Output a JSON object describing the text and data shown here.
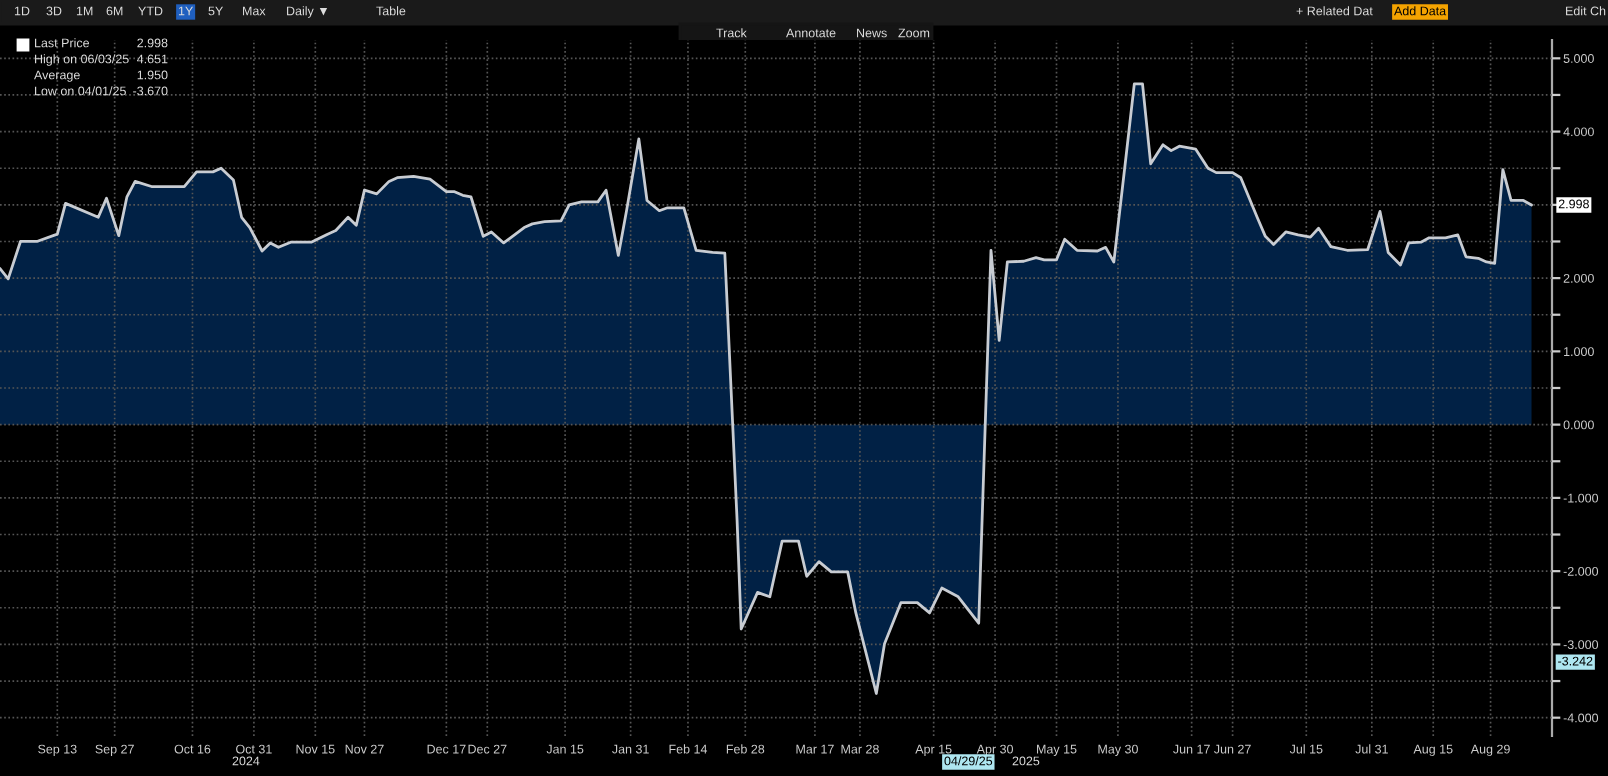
{
  "chart_data": {
    "type": "area",
    "x": [
      "2024-08-30",
      "2024-09-01",
      "2024-09-04",
      "2024-09-08",
      "2024-09-13",
      "2024-09-15",
      "2024-09-23",
      "2024-09-25",
      "2024-09-28",
      "2024-09-30",
      "2024-10-02",
      "2024-10-06",
      "2024-10-14",
      "2024-10-17",
      "2024-10-21",
      "2024-10-23",
      "2024-10-26",
      "2024-10-28",
      "2024-10-30",
      "2024-11-02",
      "2024-11-04",
      "2024-11-06",
      "2024-11-09",
      "2024-11-14",
      "2024-11-18",
      "2024-11-20",
      "2024-11-23",
      "2024-11-25",
      "2024-11-27",
      "2024-11-30",
      "2024-12-03",
      "2024-12-05",
      "2024-12-09",
      "2024-12-13",
      "2024-12-17",
      "2024-12-19",
      "2024-12-21",
      "2024-12-23",
      "2024-12-26",
      "2024-12-28",
      "2024-12-31",
      "2025-01-05",
      "2025-01-07",
      "2025-01-10",
      "2025-01-14",
      "2025-01-16",
      "2025-01-19",
      "2025-01-23",
      "2025-01-25",
      "2025-01-28",
      "2025-01-30",
      "2025-02-02",
      "2025-02-04",
      "2025-02-07",
      "2025-02-09",
      "2025-02-13",
      "2025-02-16",
      "2025-02-20",
      "2025-02-23",
      "2025-02-26",
      "2025-02-27",
      "2025-03-03",
      "2025-03-06",
      "2025-03-09",
      "2025-03-13",
      "2025-03-15",
      "2025-03-18",
      "2025-03-21",
      "2025-03-25",
      "2025-03-27",
      "2025-04-01",
      "2025-04-03",
      "2025-04-05",
      "2025-04-07",
      "2025-04-11",
      "2025-04-14",
      "2025-04-17",
      "2025-04-21",
      "2025-04-26",
      "2025-04-29",
      "2025-05-01",
      "2025-05-03",
      "2025-05-07",
      "2025-05-10",
      "2025-05-12",
      "2025-05-15",
      "2025-05-17",
      "2025-05-20",
      "2025-05-25",
      "2025-05-27",
      "2025-05-29",
      "2025-06-01",
      "2025-06-03",
      "2025-06-05",
      "2025-06-07",
      "2025-06-10",
      "2025-06-12",
      "2025-06-14",
      "2025-06-18",
      "2025-06-21",
      "2025-06-23",
      "2025-06-27",
      "2025-06-29",
      "2025-07-03",
      "2025-07-05",
      "2025-07-07",
      "2025-07-10",
      "2025-07-13",
      "2025-07-16",
      "2025-07-18",
      "2025-07-21",
      "2025-07-25",
      "2025-07-30",
      "2025-08-02",
      "2025-08-04",
      "2025-08-07",
      "2025-08-09",
      "2025-08-12",
      "2025-08-14",
      "2025-08-18",
      "2025-08-21",
      "2025-08-23",
      "2025-08-26",
      "2025-08-28",
      "2025-08-30",
      "2025-09-01",
      "2025-09-03",
      "2025-09-06",
      "2025-09-08"
    ],
    "series": [
      {
        "color": "#012145",
        "values": [
          2.13,
          1.99,
          2.5,
          2.5,
          2.6,
          3.02,
          2.83,
          3.09,
          2.58,
          3.11,
          3.32,
          3.25,
          3.25,
          3.45,
          3.45,
          3.5,
          3.34,
          2.83,
          2.69,
          2.37,
          2.48,
          2.42,
          2.49,
          2.49,
          2.6,
          2.65,
          2.83,
          2.72,
          3.2,
          3.15,
          3.32,
          3.37,
          3.39,
          3.35,
          3.18,
          3.18,
          3.13,
          3.11,
          2.57,
          2.63,
          2.48,
          2.69,
          2.74,
          2.77,
          2.78,
          3.0,
          3.04,
          3.04,
          3.2,
          2.31,
          2.92,
          3.9,
          3.06,
          2.92,
          2.96,
          2.96,
          2.38,
          2.35,
          2.34,
          -1.31,
          -2.79,
          -2.29,
          -2.35,
          -1.59,
          -1.59,
          -2.07,
          -1.87,
          -2.01,
          -2.01,
          -2.57,
          -3.67,
          -2.99,
          -2.71,
          -2.43,
          -2.43,
          -2.57,
          -2.23,
          -2.35,
          -2.71,
          2.38,
          1.15,
          2.22,
          2.23,
          2.28,
          2.25,
          2.25,
          2.53,
          2.38,
          2.37,
          2.42,
          2.22,
          3.67,
          4.65,
          4.65,
          3.56,
          3.82,
          3.74,
          3.8,
          3.76,
          3.5,
          3.44,
          3.44,
          3.37,
          2.83,
          2.57,
          2.46,
          2.63,
          2.59,
          2.56,
          2.68,
          2.43,
          2.38,
          2.39,
          2.91,
          2.35,
          2.18,
          2.48,
          2.49,
          2.55,
          2.55,
          2.59,
          2.29,
          2.27,
          2.22,
          2.2,
          3.48,
          3.06,
          3.06,
          2.998
        ]
      }
    ],
    "xlim": [
      "2024-08-30",
      "2025-09-13"
    ],
    "xticks": [
      {
        "value": "2024-09-13",
        "label": "Sep 13"
      },
      {
        "value": "2024-09-27",
        "label": "Sep 27"
      },
      {
        "value": "2024-10-16",
        "label": "Oct 16"
      },
      {
        "value": "2024-10-31",
        "label": "Oct 31"
      },
      {
        "value": "2024-11-15",
        "label": "Nov 15"
      },
      {
        "value": "2024-11-27",
        "label": "Nov 27"
      },
      {
        "value": "2024-12-17",
        "label": "Dec 17"
      },
      {
        "value": "2024-12-27",
        "label": "Dec 27"
      },
      {
        "value": "2025-01-15",
        "label": "Jan 15"
      },
      {
        "value": "2025-01-31",
        "label": "Jan 31"
      },
      {
        "value": "2025-02-14",
        "label": "Feb 14"
      },
      {
        "value": "2025-02-28",
        "label": "Feb 28"
      },
      {
        "value": "2025-03-17",
        "label": "Mar 17"
      },
      {
        "value": "2025-03-28",
        "label": "Mar 28"
      },
      {
        "value": "2025-04-15",
        "label": "Apr 15"
      },
      {
        "value": "2025-04-30",
        "label": "Apr 30"
      },
      {
        "value": "2025-05-15",
        "label": "May 15"
      },
      {
        "value": "2025-05-30",
        "label": "May 30"
      },
      {
        "value": "2025-06-17",
        "label": "Jun 17"
      },
      {
        "value": "2025-06-27",
        "label": "Jun 27"
      },
      {
        "value": "2025-07-15",
        "label": "Jul 15"
      },
      {
        "value": "2025-07-31",
        "label": "Jul 31"
      },
      {
        "value": "2025-08-15",
        "label": "Aug 15"
      },
      {
        "value": "2025-08-29",
        "label": "Aug 29"
      }
    ],
    "ylim": [
      -4.25,
      5.25
    ],
    "yticks": [
      {
        "value": -4,
        "label": "-4.000"
      },
      {
        "value": -3.5,
        "label": null
      },
      {
        "value": -3,
        "label": "-3.000"
      },
      {
        "value": -2.5,
        "label": null
      },
      {
        "value": -2,
        "label": "-2.000"
      },
      {
        "value": -1.5,
        "label": null
      },
      {
        "value": -1,
        "label": "-1.000"
      },
      {
        "value": -0.5,
        "label": null
      },
      {
        "value": 0,
        "label": "0.000"
      },
      {
        "value": 0.5,
        "label": null
      },
      {
        "value": 1,
        "label": "1.000"
      },
      {
        "value": 1.5,
        "label": null
      },
      {
        "value": 2,
        "label": "2.000"
      },
      {
        "value": 2.5,
        "label": null
      },
      {
        "value": 3,
        "label": null
      },
      {
        "value": 3.5,
        "label": null
      },
      {
        "value": 4,
        "label": "4.000"
      },
      {
        "value": 4.5,
        "label": null
      },
      {
        "value": 5,
        "label": "5.000"
      }
    ],
    "grid": true,
    "annotations": [
      "1D",
      "3D",
      "1M",
      "6M",
      "YTD",
      "1Y",
      "5Y",
      "Max",
      "Daily ▼",
      "Table",
      "Track",
      "Annotate",
      "News",
      "Zoom",
      "+ Related Dat",
      "Add Data",
      "Edit Ch",
      "Last Price",
      "2.998",
      "High on 06/03/25",
      "4.651",
      "Average",
      "1.950",
      "Low on 04/01/25",
      "-3.670",
      "2024",
      "2025",
      {
        "text": "2.998",
        "x": "2025-09-08",
        "y": 2.998
      },
      {
        "text": "-3.242",
        "y": -3.242
      },
      "04/29/25"
    ]
  }
}
